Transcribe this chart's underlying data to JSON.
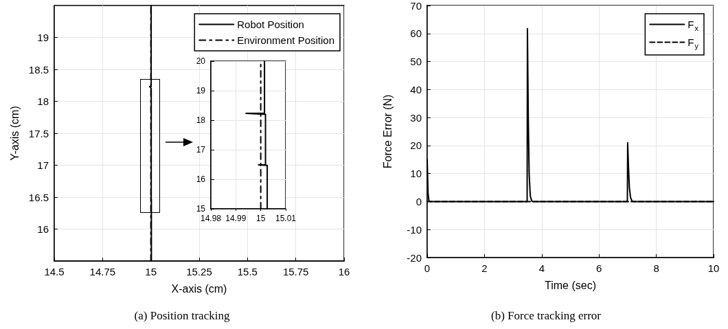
{
  "chart_data": [
    {
      "type": "line",
      "title": "(a) Position tracking",
      "xlabel": "X-axis (cm)",
      "ylabel": "Y-axis (cm)",
      "xlim": [
        14.5,
        16
      ],
      "xticks": [
        14.5,
        14.75,
        15,
        15.25,
        15.5,
        15.75,
        16
      ],
      "ylim": [
        15.5,
        19.5
      ],
      "yticks": [
        16,
        16.5,
        17,
        17.5,
        18,
        18.5,
        19
      ],
      "grid": true,
      "legend": "top right",
      "series": [
        {
          "name": "Robot Position",
          "color": "#000000",
          "line_style": "solid",
          "x": [
            15.0026,
            15.0026,
            14.9991,
            15.0019,
            15.0019,
            14.9941,
            15.0015,
            15.0015
          ],
          "values": [
            15.5,
            16.47,
            16.49,
            16.49,
            18.2,
            18.23,
            18.23,
            19.5
          ]
        },
        {
          "name": "Environment Position",
          "color": "#000000",
          "line_style": "dashdot",
          "x": [
            15,
            15
          ],
          "values": [
            15.5,
            19.5
          ]
        }
      ]
    },
    {
      "type": "line",
      "xlim": [
        14.98,
        15.01
      ],
      "xticks": [
        14.98,
        14.99,
        15,
        15.01
      ],
      "ylim": [
        15,
        20
      ],
      "yticks": [
        15,
        16,
        17,
        18,
        19,
        20
      ],
      "grid": true,
      "series": [
        {
          "color": "#000000",
          "line_style": "solid",
          "x": [
            15.0026,
            15.0026,
            14.9991,
            15.0019,
            15.0019,
            14.9941,
            15.0015,
            15.0015
          ],
          "values": [
            15,
            16.47,
            16.49,
            16.49,
            18.2,
            18.23,
            18.23,
            20
          ]
        },
        {
          "color": "#000000",
          "line_style": "dashdot",
          "x": [
            15,
            15
          ],
          "values": [
            15,
            20
          ]
        }
      ]
    },
    {
      "type": "line",
      "title": "(b) Force tracking error",
      "xlabel": "Time (sec)",
      "ylabel": "Force Error (N)",
      "xlim": [
        0,
        10
      ],
      "xticks": [
        0,
        2,
        4,
        6,
        8,
        10
      ],
      "ylim": [
        -20,
        70
      ],
      "yticks": [
        -20,
        -10,
        0,
        10,
        20,
        30,
        40,
        50,
        60,
        70
      ],
      "grid": true,
      "legend": "top right",
      "series": [
        {
          "name": "F$_{x}$",
          "color": "#000000",
          "line_style": "solid",
          "x": [
            0,
            0.03,
            0.06,
            0.1,
            3.49,
            3.5,
            3.53,
            3.56,
            3.6,
            3.65,
            3.7,
            6.99,
            7.0,
            7.03,
            7.06,
            7.1,
            7.15,
            7.2,
            10
          ],
          "values": [
            15,
            3,
            0.3,
            0,
            0,
            61.7,
            30,
            10,
            2,
            0.2,
            0,
            0,
            21,
            12,
            5,
            1.5,
            0.2,
            0,
            0
          ]
        },
        {
          "name": "F$_{y}$",
          "color": "#000000",
          "line_style": "dashed",
          "x": [
            0,
            10
          ],
          "values": [
            0,
            0
          ]
        }
      ]
    }
  ]
}
